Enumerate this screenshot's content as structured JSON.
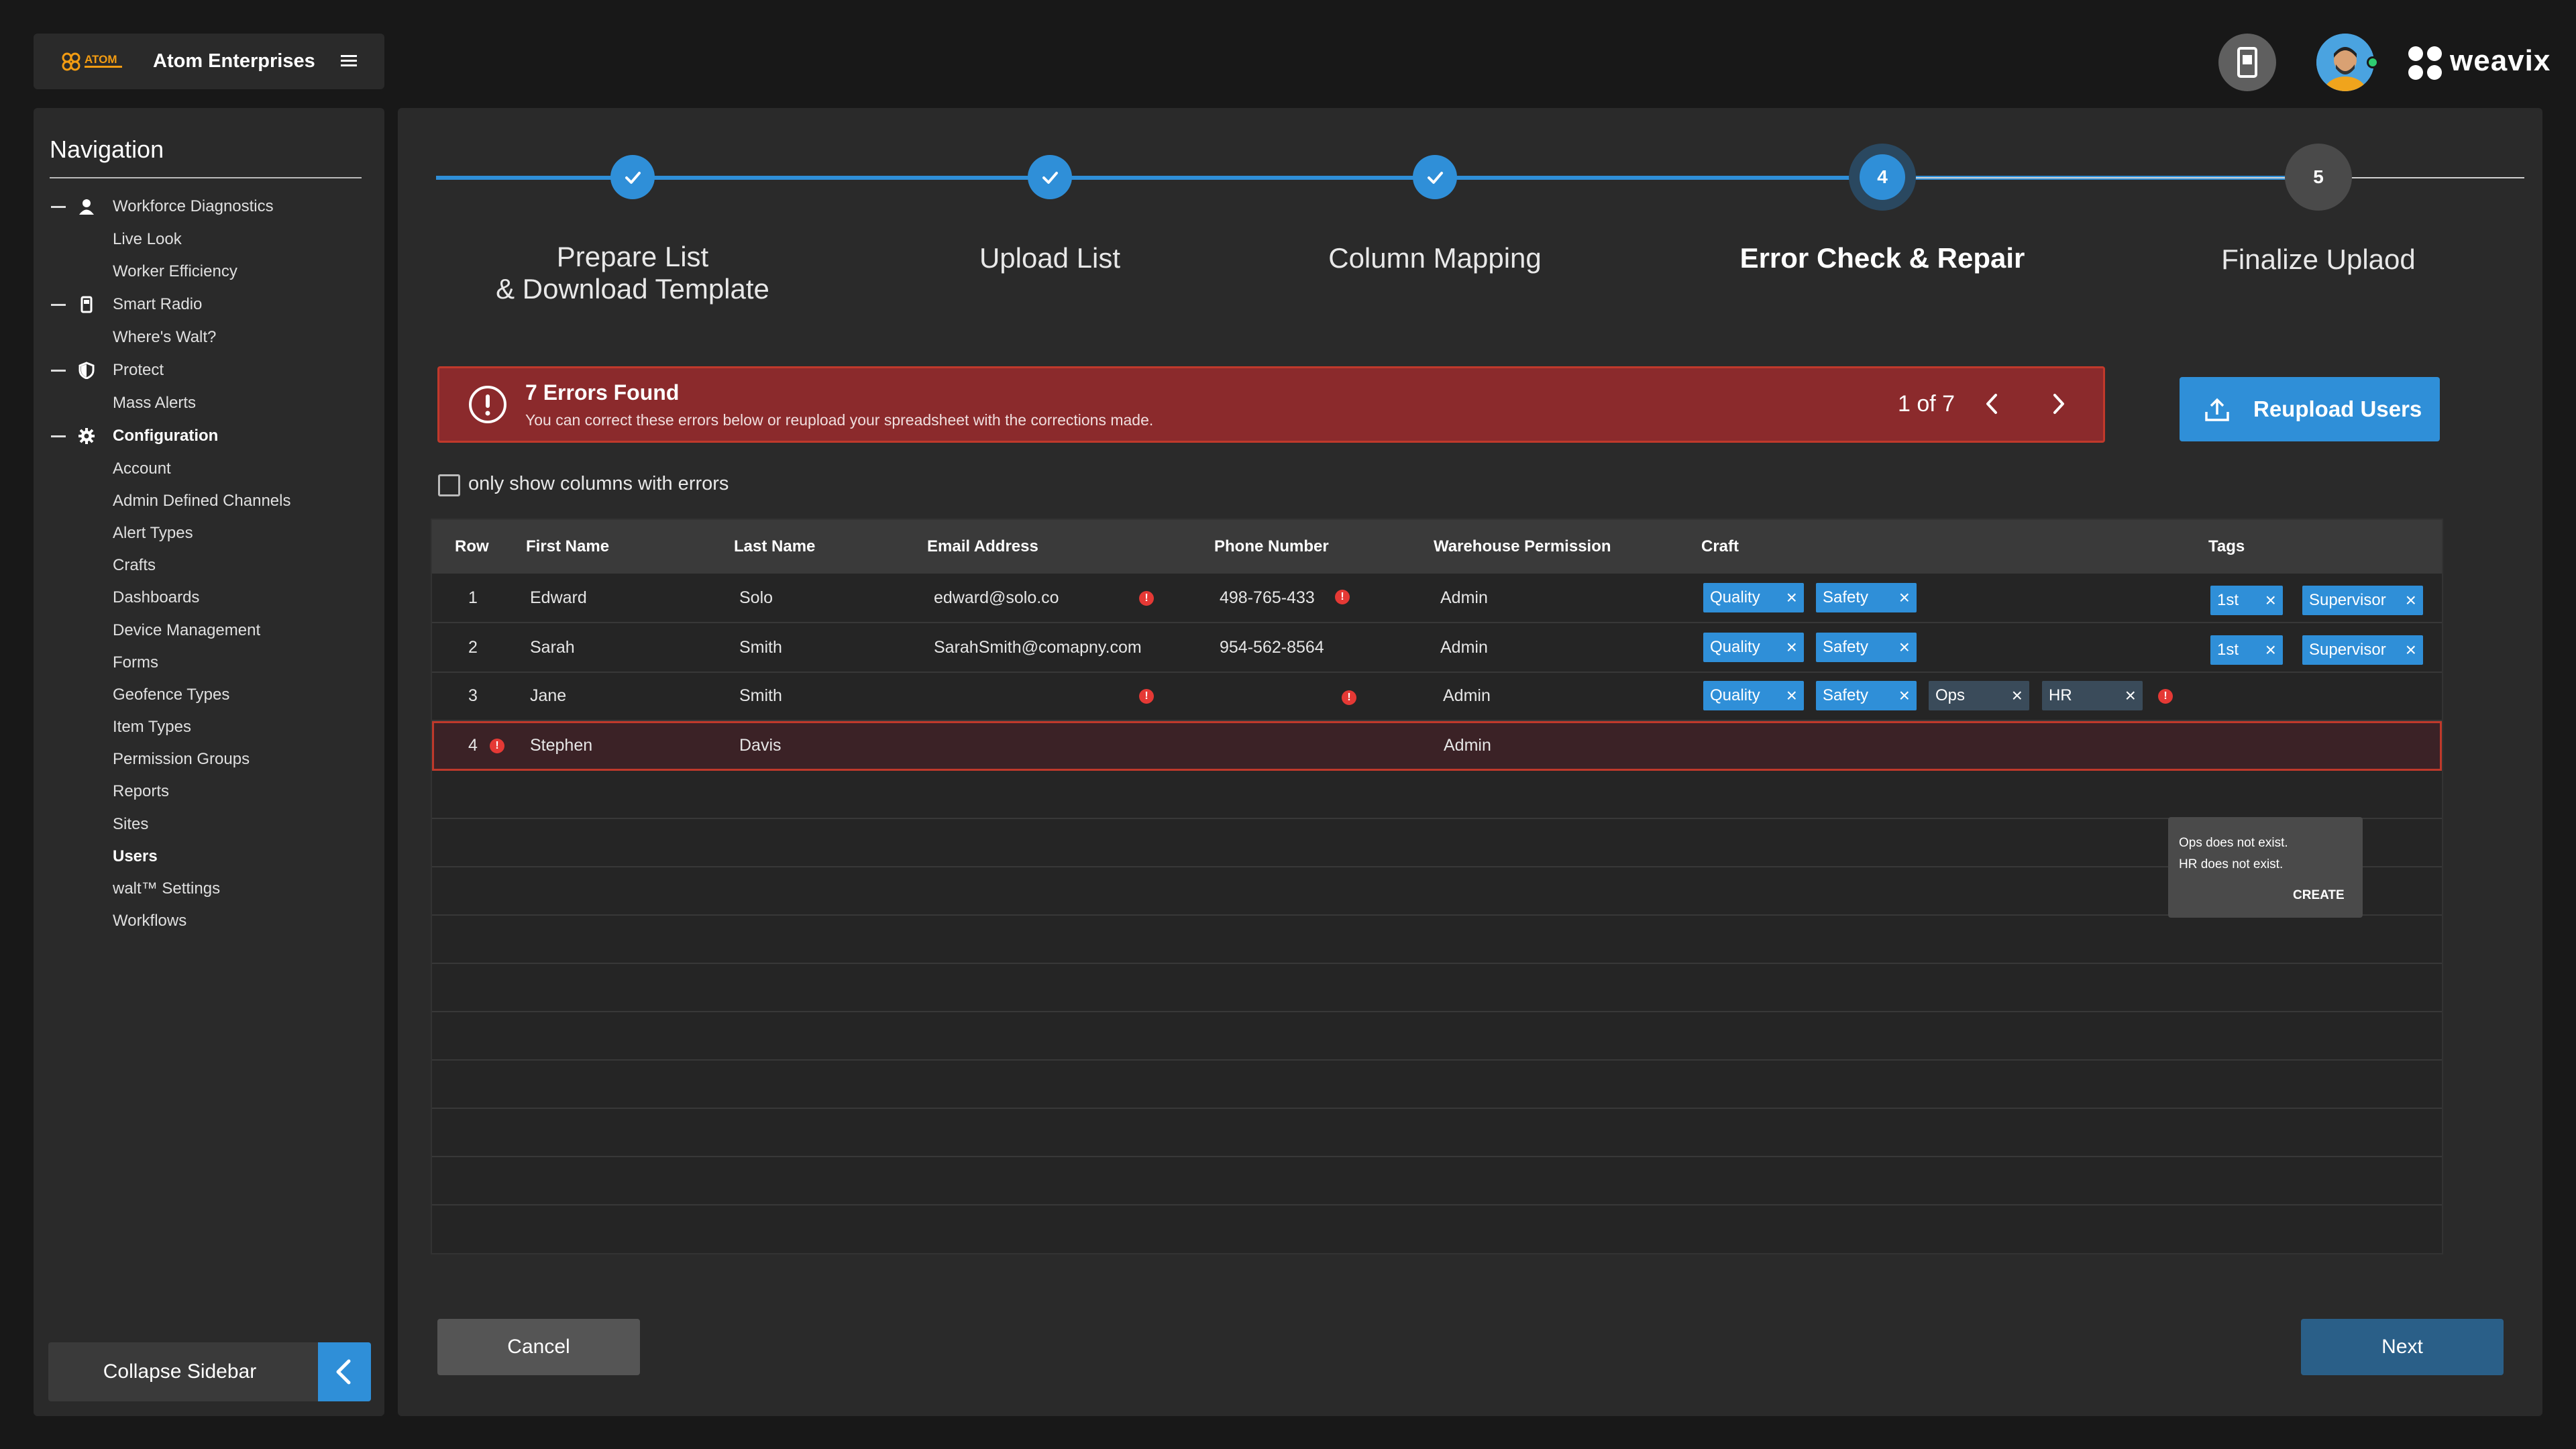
{
  "brand": {
    "logo_text": "ATOM",
    "name": "Atom Enterprises",
    "weavix": "weavix"
  },
  "colors": {
    "accent": "#2f8fd8",
    "error": "#e53935",
    "error_bg": "#8b2a2c"
  },
  "sidebar": {
    "title": "Navigation",
    "items": [
      {
        "label": "Workforce Diagnostics",
        "icon": "person-icon",
        "section": true
      },
      {
        "label": "Live Look"
      },
      {
        "label": "Worker Efficiency"
      },
      {
        "label": "Smart Radio",
        "icon": "radio-icon",
        "section": true
      },
      {
        "label": "Where's Walt?"
      },
      {
        "label": "Protect",
        "icon": "shield-icon",
        "section": true
      },
      {
        "label": "Mass Alerts"
      },
      {
        "label": "Configuration",
        "icon": "gear-icon",
        "section": true,
        "bold": true
      },
      {
        "label": "Account"
      },
      {
        "label": "Admin Defined Channels"
      },
      {
        "label": "Alert Types"
      },
      {
        "label": "Crafts"
      },
      {
        "label": "Dashboards"
      },
      {
        "label": "Device Management"
      },
      {
        "label": "Forms"
      },
      {
        "label": "Geofence Types"
      },
      {
        "label": "Item Types"
      },
      {
        "label": "Permission Groups"
      },
      {
        "label": "Reports"
      },
      {
        "label": "Sites"
      },
      {
        "label": "Users",
        "bold": true
      },
      {
        "label": "walt™ Settings"
      },
      {
        "label": "Workflows"
      }
    ],
    "collapse_label": "Collapse Sidebar"
  },
  "stepper": {
    "steps": [
      {
        "num": "1",
        "label_line1": "Prepare List",
        "label_line2": "& Download Template",
        "state": "done"
      },
      {
        "num": "2",
        "label_line1": "Upload List",
        "label_line2": "",
        "state": "done"
      },
      {
        "num": "3",
        "label_line1": "Column Mapping",
        "label_line2": "",
        "state": "done"
      },
      {
        "num": "4",
        "label_line1": "Error Check & Repair",
        "label_line2": "",
        "state": "active"
      },
      {
        "num": "5",
        "label_line1": "Finalize Uplaod",
        "label_line2": "",
        "state": "pending"
      }
    ]
  },
  "errors": {
    "title": "7 Errors Found",
    "subtitle": "You can correct these errors below or reupload your spreadsheet with the corrections made.",
    "counter": "1 of 7"
  },
  "reupload_label": "Reupload Users",
  "filter_label": "only show columns with errors",
  "table": {
    "headers": [
      "Row",
      "First Name",
      "Last Name",
      "Email Address",
      "Phone Number",
      "Warehouse Permission",
      "Craft",
      "Tags"
    ],
    "rows": [
      {
        "row": "1",
        "first": "Edward",
        "last": "Solo",
        "email": "edward@solo.co",
        "phone": "498-765-433",
        "perm": "Admin",
        "crafts": [
          "Quality",
          "Safety"
        ],
        "tags": [
          "1st",
          "Supervisor"
        ]
      },
      {
        "row": "2",
        "first": "Sarah",
        "last": "Smith",
        "email": "SarahSmith@comapny.com",
        "phone": "954-562-8564",
        "perm": "Admin",
        "crafts": [
          "Quality",
          "Safety"
        ],
        "tags": [
          "1st",
          "Supervisor"
        ]
      },
      {
        "row": "3",
        "first": "Jane",
        "last": "Smith",
        "email": "",
        "phone": "",
        "perm": "Admin",
        "crafts": [
          "Quality",
          "Safety",
          "Ops",
          "HR"
        ],
        "tags": []
      },
      {
        "row": "4",
        "first": "Stephen",
        "last": "Davis",
        "email": "",
        "phone": "",
        "perm": "Admin",
        "crafts": [],
        "tags": []
      }
    ]
  },
  "tooltip": {
    "line1": "Ops does not exist.",
    "line2": "HR does not exist.",
    "action": "CREATE"
  },
  "footer": {
    "cancel": "Cancel",
    "next": "Next"
  }
}
